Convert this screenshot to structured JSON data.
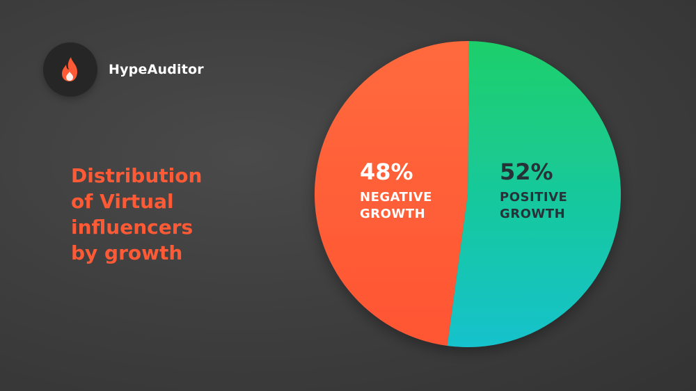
{
  "brand": {
    "name": "HypeAuditor",
    "icon": "flame-icon"
  },
  "title_lines": [
    "Distribution",
    "of Virtual",
    "influencers",
    "by growth"
  ],
  "colors": {
    "background": "#3f3f3f",
    "title": "#ff5a36",
    "negative_top": "#ff6a3d",
    "negative_bottom": "#ff5533",
    "positive_top": "#1fcf6a",
    "positive_bottom": "#12c2cc",
    "label_on_negative": "#ffffff",
    "label_on_positive": "#263238"
  },
  "chart_data": {
    "type": "pie",
    "title": "Distribution of Virtual influencers by growth",
    "slices": [
      {
        "label": "POSITIVE GROWTH",
        "lines": [
          "POSITIVE",
          "GROWTH"
        ],
        "value": 52,
        "display": "52%"
      },
      {
        "label": "NEGATIVE GROWTH",
        "lines": [
          "NEGATIVE",
          "GROWTH"
        ],
        "value": 48,
        "display": "48%"
      }
    ],
    "legend": "none"
  }
}
